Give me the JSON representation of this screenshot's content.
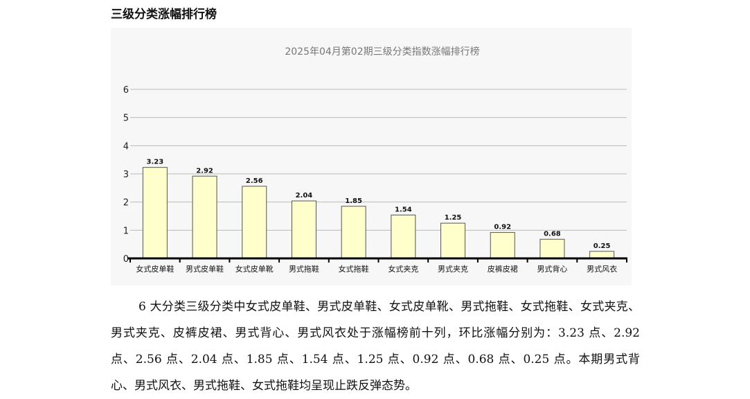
{
  "page": {
    "heading": "三级分类涨幅排行榜",
    "paragraph": "6 大分类三级分类中女式皮单鞋、男式皮单鞋、女式皮单靴、男式拖鞋、女式拖鞋、女式夹克、男式夹克、皮裤皮裙、男式背心、男式风衣处于涨幅榜前十列，环比涨幅分别为：3.23 点、2.92 点、2.56 点、2.04 点、1.85 点、1.54 点、1.25 点、0.92 点、0.68 点、0.25 点。本期男式背心、男式风衣、男式拖鞋、女式拖鞋均呈现止跌反弹态势。"
  },
  "chart_data": {
    "type": "bar",
    "title": "2025年04月第02期三级分类指数涨幅排行榜",
    "xlabel": "",
    "ylabel": "",
    "categories": [
      "女式皮单鞋",
      "男式皮单鞋",
      "女式皮单靴",
      "男式拖鞋",
      "女式拖鞋",
      "女式夹克",
      "男式夹克",
      "皮裤皮裙",
      "男式背心",
      "男式风衣"
    ],
    "values": [
      3.23,
      2.92,
      2.56,
      2.04,
      1.85,
      1.54,
      1.25,
      0.92,
      0.68,
      0.25
    ],
    "value_labels": [
      "3.23",
      "2.92",
      "2.56",
      "2.04",
      "1.85",
      "1.54",
      "1.25",
      "0.92",
      "0.68",
      "0.25"
    ],
    "ylim": [
      0,
      6
    ],
    "yticks": [
      0,
      1,
      2,
      3,
      4,
      5,
      6
    ],
    "ytick_labels": [
      "0",
      "1",
      "2",
      "3",
      "4",
      "5",
      "6"
    ],
    "grid": true,
    "legend": "none",
    "colors": {
      "bar_fill": "#ffffcc",
      "bar_stroke": "#555555",
      "grid": "#bbbbbb",
      "axis": "#000000",
      "title": "#777777",
      "background": "#f7f7f7"
    }
  }
}
